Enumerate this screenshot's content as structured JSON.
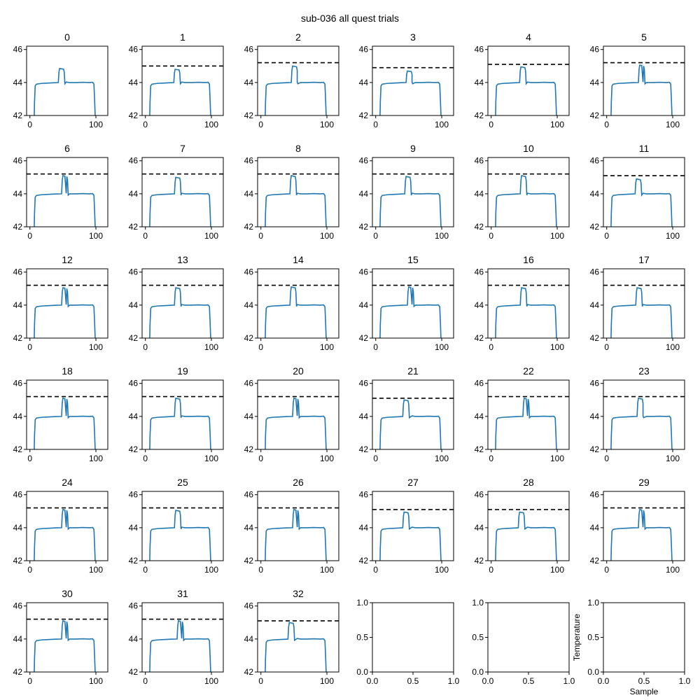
{
  "figure_title": "sub-036 all quest trials",
  "colors": {
    "trace": "#1f77b4",
    "threshold": "#000000",
    "axes": "#000000",
    "background": "#ffffff"
  },
  "chart_data": {
    "type": "line",
    "layout": {
      "rows": 6,
      "cols": 6
    },
    "shared_axes": {
      "xlim": [
        -5,
        118
      ],
      "ylim": [
        42,
        46.2
      ],
      "xticks": [
        0,
        100
      ],
      "xticklabels": [
        "0",
        "100"
      ],
      "yticks": [
        42,
        44,
        46
      ],
      "yticklabels": [
        "42",
        "44",
        "46"
      ]
    },
    "trace_template": {
      "x": [
        6,
        7,
        8,
        10,
        15,
        20,
        25,
        30,
        35,
        40,
        43,
        44,
        45,
        48,
        51,
        52,
        53,
        55,
        60,
        70,
        80,
        90,
        95,
        97,
        98,
        100,
        101
      ],
      "y_offsets": [
        -3.2,
        -1.2,
        -0.2,
        -0.1,
        -0.07,
        -0.05,
        -0.04,
        -0.03,
        -0.02,
        -0.01,
        0.0,
        0.6,
        0.82,
        0.8,
        0.78,
        0.6,
        -0.08,
        0.03,
        0.0,
        0.0,
        0.01,
        0.0,
        0.01,
        -0.1,
        -1.0,
        -3.2,
        -4.0
      ],
      "note_baseline": 44.0
    },
    "panels": [
      {
        "title": "0",
        "threshold": null,
        "bump_start": 43,
        "bump_end": 52,
        "bump_peak": 44.85,
        "baseline": 44.0
      },
      {
        "title": "1",
        "threshold": 45.0,
        "bump_start": 43,
        "bump_end": 52,
        "bump_peak": 44.8,
        "baseline": 44.0
      },
      {
        "title": "2",
        "threshold": 45.2,
        "bump_start": 46,
        "bump_end": 55,
        "bump_peak": 45.0,
        "baseline": 44.0
      },
      {
        "title": "3",
        "threshold": 44.9,
        "bump_start": 46,
        "bump_end": 55,
        "bump_peak": 44.7,
        "baseline": 44.0
      },
      {
        "title": "4",
        "threshold": 45.1,
        "bump_start": 43,
        "bump_end": 52,
        "bump_peak": 44.95,
        "baseline": 44.0
      },
      {
        "title": "5",
        "threshold": 45.2,
        "bump_start": 48,
        "bump_end": 57,
        "bump_peak": 45.05,
        "baseline": 44.0
      },
      {
        "title": "6",
        "threshold": 45.2,
        "bump_start": 48,
        "bump_end": 57,
        "bump_peak": 45.1,
        "baseline": 44.0
      },
      {
        "title": "7",
        "threshold": 45.2,
        "bump_start": 44,
        "bump_end": 53,
        "bump_peak": 45.0,
        "baseline": 44.0
      },
      {
        "title": "8",
        "threshold": 45.2,
        "bump_start": 44,
        "bump_end": 53,
        "bump_peak": 45.1,
        "baseline": 44.0
      },
      {
        "title": "9",
        "threshold": 45.2,
        "bump_start": 44,
        "bump_end": 53,
        "bump_peak": 45.05,
        "baseline": 44.0
      },
      {
        "title": "10",
        "threshold": 45.2,
        "bump_start": 44,
        "bump_end": 53,
        "bump_peak": 45.1,
        "baseline": 44.0
      },
      {
        "title": "11",
        "threshold": 45.1,
        "bump_start": 43,
        "bump_end": 52,
        "bump_peak": 44.9,
        "baseline": 44.0
      },
      {
        "title": "12",
        "threshold": 45.2,
        "bump_start": 48,
        "bump_end": 57,
        "bump_peak": 45.05,
        "baseline": 44.0
      },
      {
        "title": "13",
        "threshold": 45.2,
        "bump_start": 44,
        "bump_end": 53,
        "bump_peak": 45.05,
        "baseline": 44.0
      },
      {
        "title": "14",
        "threshold": 45.2,
        "bump_start": 44,
        "bump_end": 53,
        "bump_peak": 45.1,
        "baseline": 44.0
      },
      {
        "title": "15",
        "threshold": 45.2,
        "bump_start": 48,
        "bump_end": 57,
        "bump_peak": 45.1,
        "baseline": 44.0
      },
      {
        "title": "16",
        "threshold": 45.2,
        "bump_start": 44,
        "bump_end": 53,
        "bump_peak": 45.05,
        "baseline": 44.0
      },
      {
        "title": "17",
        "threshold": 45.2,
        "bump_start": 44,
        "bump_end": 53,
        "bump_peak": 45.05,
        "baseline": 44.0
      },
      {
        "title": "18",
        "threshold": 45.2,
        "bump_start": 48,
        "bump_end": 57,
        "bump_peak": 45.1,
        "baseline": 44.0
      },
      {
        "title": "19",
        "threshold": 45.2,
        "bump_start": 44,
        "bump_end": 53,
        "bump_peak": 45.1,
        "baseline": 44.0
      },
      {
        "title": "20",
        "threshold": 45.2,
        "bump_start": 48,
        "bump_end": 57,
        "bump_peak": 45.1,
        "baseline": 44.0
      },
      {
        "title": "21",
        "threshold": 45.1,
        "bump_start": 41,
        "bump_end": 50,
        "bump_peak": 45.0,
        "baseline": 44.0
      },
      {
        "title": "22",
        "threshold": 45.2,
        "bump_start": 48,
        "bump_end": 57,
        "bump_peak": 45.1,
        "baseline": 44.0
      },
      {
        "title": "23",
        "threshold": 45.2,
        "bump_start": 46,
        "bump_end": 55,
        "bump_peak": 45.1,
        "baseline": 44.0
      },
      {
        "title": "24",
        "threshold": 45.2,
        "bump_start": 48,
        "bump_end": 57,
        "bump_peak": 45.1,
        "baseline": 44.0
      },
      {
        "title": "25",
        "threshold": 45.2,
        "bump_start": 44,
        "bump_end": 53,
        "bump_peak": 45.05,
        "baseline": 44.0
      },
      {
        "title": "26",
        "threshold": 45.2,
        "bump_start": 48,
        "bump_end": 57,
        "bump_peak": 45.1,
        "baseline": 44.0
      },
      {
        "title": "27",
        "threshold": 45.1,
        "bump_start": 41,
        "bump_end": 50,
        "bump_peak": 44.95,
        "baseline": 44.0
      },
      {
        "title": "28",
        "threshold": 45.1,
        "bump_start": 41,
        "bump_end": 50,
        "bump_peak": 44.95,
        "baseline": 44.0
      },
      {
        "title": "29",
        "threshold": 45.2,
        "bump_start": 48,
        "bump_end": 57,
        "bump_peak": 45.1,
        "baseline": 44.0
      },
      {
        "title": "30",
        "threshold": 45.2,
        "bump_start": 48,
        "bump_end": 57,
        "bump_peak": 45.1,
        "baseline": 44.0
      },
      {
        "title": "31",
        "threshold": 45.2,
        "bump_start": 48,
        "bump_end": 57,
        "bump_peak": 45.1,
        "baseline": 44.0
      },
      {
        "title": "32",
        "threshold": 45.1,
        "bump_start": 41,
        "bump_end": 50,
        "bump_peak": 45.0,
        "baseline": 44.0
      }
    ],
    "empty_panels": [
      {
        "xlim": [
          0,
          1
        ],
        "ylim": [
          0,
          1
        ],
        "xticklabels": [
          "0.0",
          "0.5",
          "1.0"
        ],
        "yticklabels": [
          "0.0",
          "0.5",
          "1.0"
        ]
      },
      {
        "xlim": [
          0,
          1
        ],
        "ylim": [
          0,
          1
        ],
        "xticklabels": [
          "0.0",
          "0.5",
          "1.0"
        ],
        "yticklabels": [
          "0.0",
          "0.5",
          "1.0"
        ]
      },
      {
        "xlim": [
          0,
          1
        ],
        "ylim": [
          0,
          1
        ],
        "xticklabels": [
          "0.0",
          "0.5",
          "1.0"
        ],
        "yticklabels": [
          "0.0",
          "0.5",
          "1.0"
        ],
        "xlabel": "Sample",
        "ylabel": "Temperature"
      }
    ]
  }
}
